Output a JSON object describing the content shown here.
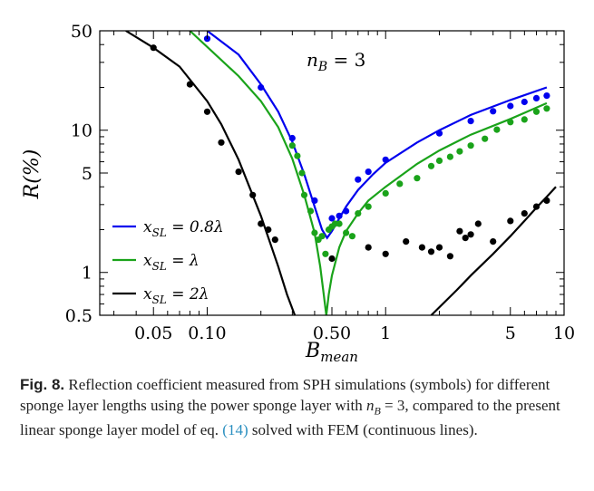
{
  "chart_data": {
    "type": "line",
    "xscale": "log",
    "yscale": "log",
    "xlim": [
      0.025,
      10
    ],
    "ylim": [
      0.5,
      50
    ],
    "xlabel": "B_mean",
    "ylabel": "R(%)",
    "xticks": [
      0.05,
      0.1,
      0.5,
      1,
      5,
      10
    ],
    "xtick_labels": [
      "0.05",
      "0.10",
      "0.50",
      "1",
      "5",
      "10"
    ],
    "yticks": [
      0.5,
      1,
      5,
      10,
      50
    ],
    "ytick_labels": [
      "0.5",
      "1",
      "5",
      "10",
      "50"
    ],
    "annotation": "n_B = 3",
    "legend_position": "bottom-left",
    "series": [
      {
        "name": "x_SL = 0.8λ",
        "color": "#0000ee",
        "line": [
          [
            0.1,
            50
          ],
          [
            0.15,
            34
          ],
          [
            0.2,
            21
          ],
          [
            0.25,
            13.5
          ],
          [
            0.3,
            8.3
          ],
          [
            0.35,
            4.9
          ],
          [
            0.4,
            2.9
          ],
          [
            0.44,
            2.0
          ],
          [
            0.47,
            1.75
          ],
          [
            0.5,
            1.95
          ],
          [
            0.6,
            2.9
          ],
          [
            0.7,
            3.8
          ],
          [
            0.85,
            4.9
          ],
          [
            1,
            5.9
          ],
          [
            1.5,
            8.2
          ],
          [
            2,
            10.0
          ],
          [
            3,
            12.8
          ],
          [
            5,
            16.3
          ],
          [
            8,
            20.0
          ]
        ],
        "points": [
          [
            0.1,
            44
          ],
          [
            0.2,
            20
          ],
          [
            0.3,
            8.8
          ],
          [
            0.4,
            3.2
          ],
          [
            0.5,
            2.4
          ],
          [
            0.55,
            2.5
          ],
          [
            0.6,
            2.7
          ],
          [
            0.7,
            4.5
          ],
          [
            0.8,
            5.1
          ],
          [
            1.0,
            6.2
          ],
          [
            2.0,
            9.5
          ],
          [
            3.0,
            11.6
          ],
          [
            4.0,
            13.6
          ],
          [
            5.0,
            14.8
          ],
          [
            6.0,
            15.8
          ],
          [
            7.0,
            16.8
          ],
          [
            8.0,
            17.5
          ]
        ]
      },
      {
        "name": "x_SL = λ",
        "color": "#1aa31a",
        "line": [
          [
            0.08,
            50
          ],
          [
            0.15,
            24
          ],
          [
            0.2,
            16
          ],
          [
            0.25,
            10.5
          ],
          [
            0.3,
            6.3
          ],
          [
            0.35,
            3.5
          ],
          [
            0.4,
            1.9
          ],
          [
            0.43,
            1.1
          ],
          [
            0.45,
            0.7
          ],
          [
            0.465,
            0.5
          ],
          [
            0.48,
            0.7
          ],
          [
            0.5,
            0.95
          ],
          [
            0.55,
            1.5
          ],
          [
            0.6,
            1.95
          ],
          [
            0.7,
            2.6
          ],
          [
            0.8,
            3.2
          ],
          [
            1,
            4.0
          ],
          [
            1.5,
            5.8
          ],
          [
            2,
            7.2
          ],
          [
            3,
            9.3
          ],
          [
            5,
            12.0
          ],
          [
            8,
            15.5
          ]
        ],
        "points": [
          [
            0.3,
            7.8
          ],
          [
            0.32,
            6.6
          ],
          [
            0.34,
            5.0
          ],
          [
            0.35,
            3.5
          ],
          [
            0.38,
            2.7
          ],
          [
            0.4,
            1.9
          ],
          [
            0.42,
            1.7
          ],
          [
            0.44,
            1.8
          ],
          [
            0.46,
            1.35
          ],
          [
            0.48,
            2.0
          ],
          [
            0.5,
            2.1
          ],
          [
            0.52,
            2.2
          ],
          [
            0.55,
            2.2
          ],
          [
            0.6,
            1.9
          ],
          [
            0.65,
            1.8
          ],
          [
            0.7,
            2.6
          ],
          [
            0.8,
            2.9
          ],
          [
            1.0,
            3.6
          ],
          [
            1.2,
            4.2
          ],
          [
            1.5,
            4.6
          ],
          [
            1.8,
            5.6
          ],
          [
            2.0,
            6.1
          ],
          [
            2.3,
            6.5
          ],
          [
            2.6,
            7.1
          ],
          [
            3.0,
            7.8
          ],
          [
            3.6,
            8.7
          ],
          [
            4.2,
            10.1
          ],
          [
            5.0,
            11.4
          ],
          [
            6.0,
            11.9
          ],
          [
            7.0,
            13.5
          ],
          [
            8.0,
            14.2
          ]
        ]
      },
      {
        "name": "x_SL = 2λ",
        "color": "#000000",
        "line": [
          [
            0.035,
            50
          ],
          [
            0.05,
            38
          ],
          [
            0.07,
            28
          ],
          [
            0.1,
            16
          ],
          [
            0.12,
            11
          ],
          [
            0.15,
            6.2
          ],
          [
            0.2,
            2.5
          ],
          [
            0.25,
            1.1
          ],
          [
            0.28,
            0.7
          ],
          [
            0.31,
            0.5
          ]
        ],
        "line2": [
          [
            1.8,
            0.5
          ],
          [
            2.5,
            0.75
          ],
          [
            3,
            0.95
          ],
          [
            4,
            1.35
          ],
          [
            5,
            1.8
          ],
          [
            6,
            2.3
          ],
          [
            7,
            2.85
          ],
          [
            8,
            3.4
          ],
          [
            9,
            4.0
          ]
        ],
        "points": [
          [
            0.05,
            38
          ],
          [
            0.08,
            21
          ],
          [
            0.1,
            13.5
          ],
          [
            0.12,
            8.2
          ],
          [
            0.15,
            5.1
          ],
          [
            0.18,
            3.5
          ],
          [
            0.2,
            2.2
          ],
          [
            0.22,
            2.0
          ],
          [
            0.24,
            1.7
          ],
          [
            0.5,
            1.25
          ],
          [
            0.8,
            1.5
          ],
          [
            1.0,
            1.35
          ],
          [
            1.3,
            1.65
          ],
          [
            1.6,
            1.5
          ],
          [
            1.8,
            1.4
          ],
          [
            2.0,
            1.5
          ],
          [
            2.3,
            1.3
          ],
          [
            2.6,
            1.95
          ],
          [
            2.8,
            1.75
          ],
          [
            3.0,
            1.85
          ],
          [
            3.3,
            2.2
          ],
          [
            4.0,
            1.65
          ],
          [
            5.0,
            2.3
          ],
          [
            6.0,
            2.6
          ],
          [
            7.0,
            2.9
          ],
          [
            8.0,
            3.2
          ]
        ]
      }
    ]
  },
  "caption": {
    "label": "Fig. 8.",
    "text_before": " Reflection coefficient measured from SPH simulations (symbols) for different sponge layer lengths using the power sponge layer with ",
    "math": "n",
    "math_sub": "B",
    "text_mid": " = 3, compared to the present linear sponge layer model of eq. ",
    "ref": "(14)",
    "text_after": " solved with FEM (continuous lines)."
  }
}
